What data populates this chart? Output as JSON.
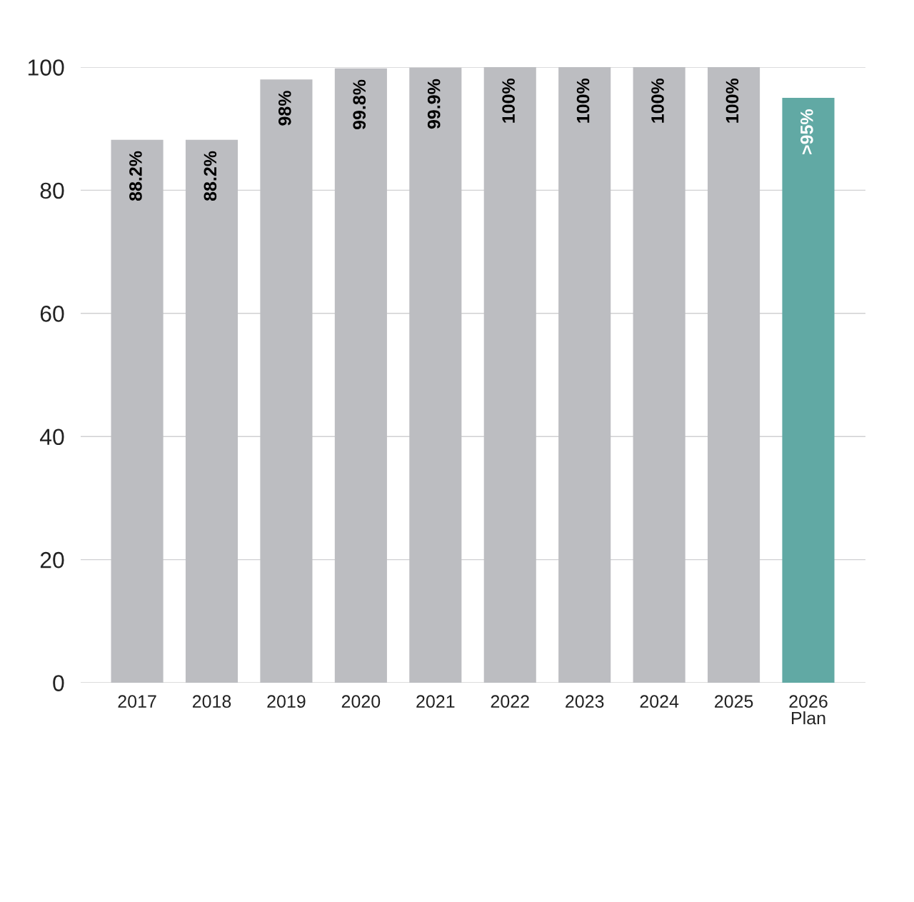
{
  "chart_data": {
    "type": "bar",
    "categories": [
      "2017",
      "2018",
      "2019",
      "2020",
      "2021",
      "2022",
      "2023",
      "2024",
      "2025",
      "2026\nPlan"
    ],
    "values": [
      88.2,
      88.2,
      98,
      99.8,
      99.9,
      100,
      100,
      100,
      100,
      95
    ],
    "colors": [
      "#bcbdc1",
      "#bcbdc1",
      "#bcbdc1",
      "#bcbdc1",
      "#bcbdc1",
      "#bcbdc1",
      "#bcbdc1",
      "#bcbdc1",
      "#bcbdc1",
      "#61a9a4"
    ],
    "value_labels": [
      "88.2%",
      "88.2%",
      "98%",
      "99.8%",
      "99.9%",
      "100%",
      "100%",
      "100%",
      "100%",
      ">95%"
    ],
    "ylim": [
      0,
      100
    ],
    "yticks": [
      0,
      20,
      40,
      60,
      80,
      100
    ],
    "grid": "y",
    "legend": false
  }
}
